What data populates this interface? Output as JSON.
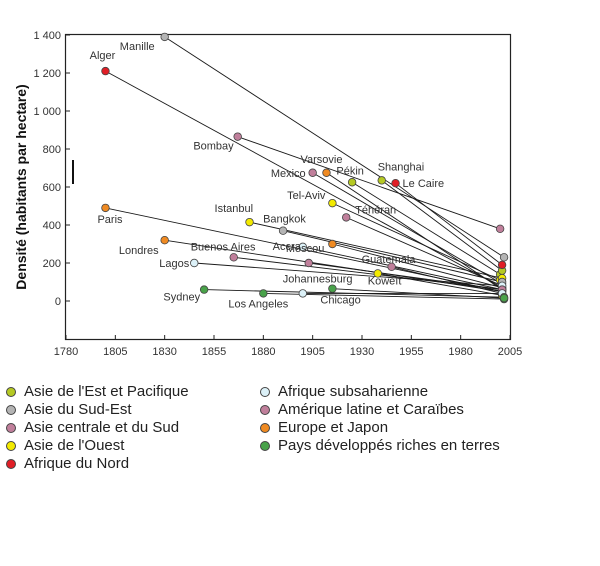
{
  "chart_data": {
    "type": "scatter",
    "title": "",
    "ylabel": "Densité (habitants par hectare)",
    "xlabel": "",
    "xlim": [
      1780,
      2005
    ],
    "ylim": [
      -200,
      1400
    ],
    "x_ticks": [
      1780,
      1805,
      1830,
      1855,
      1880,
      1905,
      1930,
      1955,
      1980,
      2005
    ],
    "y_ticks": [
      0,
      200,
      400,
      600,
      800,
      1000,
      1200,
      1400
    ],
    "y_tick_labels": [
      "0",
      "200",
      "400",
      "600",
      "800",
      "1 000",
      "1 200",
      "1 400"
    ],
    "grid": false,
    "regions": [
      {
        "key": "eap",
        "name": "Asie de l'Est et Pacifique",
        "color": "#b5c923"
      },
      {
        "key": "sea",
        "name": "Asie du Sud-Est",
        "color": "#b4b4b4"
      },
      {
        "key": "csa",
        "name": "Asie centrale et du Sud",
        "color": "#c07f9b"
      },
      {
        "key": "wa",
        "name": "Asie de l'Ouest",
        "color": "#f3ea00"
      },
      {
        "key": "na",
        "name": "Afrique du Nord",
        "color": "#e01e26"
      },
      {
        "key": "ssa",
        "name": "Afrique subsaharienne",
        "color": "#dcf1f8"
      },
      {
        "key": "lac",
        "name": "Amérique latine et Caraïbes",
        "color": "#c07f9b"
      },
      {
        "key": "ej",
        "name": "Europe et Japon",
        "color": "#ef8a22"
      },
      {
        "key": "drl",
        "name": "Pays développés riches en terres",
        "color": "#49a24a"
      }
    ],
    "series": [
      {
        "city": "Manille",
        "region": "sea",
        "x": 1830,
        "y": 1390,
        "x_end": 2002,
        "y_end": 230
      },
      {
        "city": "Alger",
        "region": "na",
        "x": 1800,
        "y": 1210,
        "x_end": 2001,
        "y_end": 70
      },
      {
        "city": "Bombay",
        "region": "csa",
        "x": 1867,
        "y": 865,
        "x_end": 2000,
        "y_end": 380
      },
      {
        "city": "Varsovie",
        "region": "ej",
        "x": 1912,
        "y": 675,
        "x_end": 2001,
        "y_end": 60
      },
      {
        "city": "Mexico",
        "region": "lac",
        "x": 1905,
        "y": 675,
        "x_end": 2001,
        "y_end": 90
      },
      {
        "city": "Pékin",
        "region": "eap",
        "x": 1925,
        "y": 625,
        "x_end": 2000,
        "y_end": 140
      },
      {
        "city": "Shanghai",
        "region": "eap",
        "x": 1940,
        "y": 635,
        "x_end": 2001,
        "y_end": 160
      },
      {
        "city": "Le Caire",
        "region": "na",
        "x": 1947,
        "y": 620,
        "x_end": 2001,
        "y_end": 190
      },
      {
        "city": "Tel-Aviv",
        "region": "wa",
        "x": 1915,
        "y": 515,
        "x_end": 2000,
        "y_end": 110
      },
      {
        "city": "Téhéran",
        "region": "csa",
        "x": 1922,
        "y": 440,
        "x_end": 2001,
        "y_end": 80
      },
      {
        "city": "Paris",
        "region": "ej",
        "x": 1800,
        "y": 490,
        "x_end": 2001,
        "y_end": 50
      },
      {
        "city": "Istanbul",
        "region": "wa",
        "x": 1873,
        "y": 415,
        "x_end": 2001,
        "y_end": 120
      },
      {
        "city": "Bangkok",
        "region": "sea",
        "x": 1890,
        "y": 370,
        "x_end": 2001,
        "y_end": 100
      },
      {
        "city": "Moscou",
        "region": "ej",
        "x": 1915,
        "y": 300,
        "x_end": 2001,
        "y_end": 70
      },
      {
        "city": "Accra",
        "region": "ssa",
        "x": 1900,
        "y": 285,
        "x_end": 2001,
        "y_end": 60
      },
      {
        "city": "Londres",
        "region": "ej",
        "x": 1830,
        "y": 320,
        "x_end": 2001,
        "y_end": 50
      },
      {
        "city": "Buenos Aires",
        "region": "lac",
        "x": 1865,
        "y": 230,
        "x_end": 2001,
        "y_end": 60
      },
      {
        "city": "Guatemala",
        "region": "lac",
        "x": 1945,
        "y": 180,
        "x_end": 2001,
        "y_end": 40
      },
      {
        "city": "Lagos",
        "region": "ssa",
        "x": 1845,
        "y": 200,
        "x_end": 2001,
        "y_end": 80
      },
      {
        "city": "Mexico 1905",
        "region": "lac",
        "x": 1903,
        "y": 200,
        "x_end": 2001,
        "y_end": 60
      },
      {
        "city": "Koweït",
        "region": "wa",
        "x": 1938,
        "y": 145,
        "x_end": 2001,
        "y_end": 30
      },
      {
        "city": "Johannesburg",
        "region": "ssa",
        "x": 1900,
        "y": 40,
        "x_end": 2001,
        "y_end": 40
      },
      {
        "city": "Sydney",
        "region": "drl",
        "x": 1850,
        "y": 60,
        "x_end": 2002,
        "y_end": 20
      },
      {
        "city": "Los Angeles",
        "region": "drl",
        "x": 1880,
        "y": 40,
        "x_end": 2002,
        "y_end": 10
      },
      {
        "city": "Chicago",
        "region": "drl",
        "x": 1915,
        "y": 65,
        "x_end": 2002,
        "y_end": 15
      }
    ]
  }
}
